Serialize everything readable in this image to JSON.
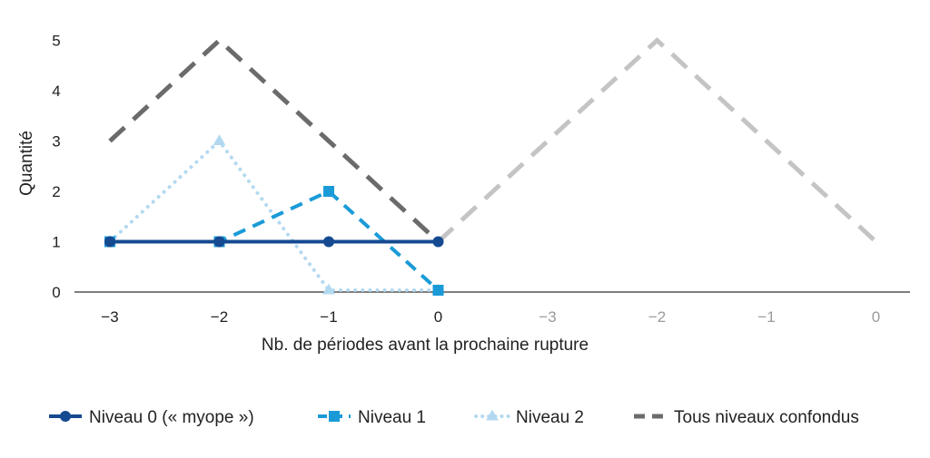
{
  "chart_data": {
    "type": "line",
    "title": "",
    "xlabel": "Nb. de périodes avant la prochaine rupture",
    "ylabel": "Quantité",
    "categories": [
      "-3",
      "-2",
      "-1",
      "0",
      "-3",
      "-2",
      "-1",
      "0"
    ],
    "ylim": [
      0,
      5
    ],
    "yticks": [
      0,
      1,
      2,
      3,
      4,
      5
    ],
    "grid": false,
    "legend_position": "bottom",
    "series": [
      {
        "name": "Niveau 0 (« myope »)",
        "color": "#154a91",
        "style": "solid",
        "marker": "circle",
        "values": [
          1,
          1,
          1,
          1,
          null,
          null,
          null,
          null
        ]
      },
      {
        "name": "Niveau 1",
        "color": "#1a9bd7",
        "style": "dashed",
        "marker": "square",
        "values": [
          1,
          1,
          2,
          0,
          null,
          null,
          null,
          null
        ]
      },
      {
        "name": "Niveau 2",
        "color": "#b3d9f0",
        "style": "dotted",
        "marker": "triangle",
        "values": [
          1,
          3,
          0,
          0,
          null,
          null,
          null,
          null
        ]
      },
      {
        "name": "Tous niveaux confondus",
        "color": "#6b6b6b",
        "style": "dashed",
        "marker": "none",
        "values": [
          3,
          5,
          3,
          1,
          null,
          null,
          null,
          null
        ]
      },
      {
        "name": "",
        "color": "#c4c4c4",
        "style": "dashed",
        "marker": "none",
        "legend": false,
        "values": [
          null,
          null,
          null,
          1,
          3,
          5,
          3,
          1
        ]
      }
    ]
  }
}
